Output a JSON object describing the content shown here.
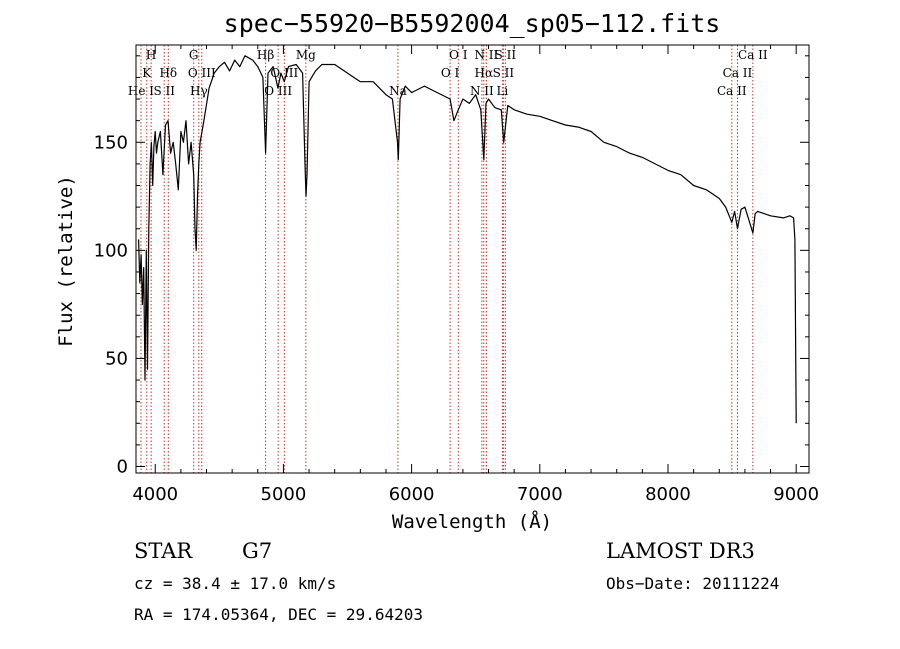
{
  "chart_data": {
    "type": "line",
    "title": "spec−55920−B5592004_sp05−112.fits",
    "xlabel": "Wavelength (Å)",
    "ylabel": "Flux (relative)",
    "xlim": [
      3850,
      9100
    ],
    "ylim": [
      -3,
      195
    ],
    "xticks": [
      4000,
      5000,
      6000,
      7000,
      8000,
      9000
    ],
    "yticks": [
      0,
      50,
      100,
      150
    ],
    "line_color": "#000000",
    "marker_color": "#c0392b",
    "series": [
      {
        "name": "flux",
        "x": [
          3870,
          3880,
          3890,
          3900,
          3910,
          3920,
          3930,
          3940,
          3950,
          3960,
          3970,
          3980,
          3990,
          4000,
          4010,
          4020,
          4040,
          4060,
          4080,
          4100,
          4120,
          4140,
          4160,
          4180,
          4200,
          4220,
          4240,
          4260,
          4280,
          4300,
          4310,
          4320,
          4330,
          4340,
          4350,
          4380,
          4420,
          4460,
          4500,
          4540,
          4580,
          4620,
          4660,
          4700,
          4760,
          4800,
          4840,
          4861,
          4880,
          4920,
          4957,
          4980,
          5007,
          5040,
          5100,
          5150,
          5168,
          5176,
          5184,
          5200,
          5250,
          5300,
          5400,
          5500,
          5600,
          5700,
          5800,
          5850,
          5890,
          5896,
          5910,
          5950,
          6000,
          6100,
          6200,
          6300,
          6330,
          6364,
          6400,
          6450,
          6500,
          6540,
          6563,
          6580,
          6600,
          6650,
          6700,
          6718,
          6750,
          6800,
          6900,
          7000,
          7100,
          7200,
          7300,
          7400,
          7500,
          7600,
          7700,
          7800,
          7900,
          8000,
          8100,
          8200,
          8300,
          8400,
          8450,
          8498,
          8520,
          8542,
          8570,
          8600,
          8662,
          8680,
          8700,
          8800,
          8900,
          8950,
          8980,
          8990,
          9000
        ],
        "y": [
          105,
          85,
          98,
          75,
          92,
          40,
          100,
          45,
          110,
          140,
          150,
          130,
          148,
          155,
          145,
          150,
          155,
          135,
          158,
          160,
          145,
          150,
          140,
          128,
          155,
          150,
          160,
          140,
          150,
          135,
          110,
          100,
          125,
          140,
          150,
          160,
          175,
          182,
          185,
          187,
          183,
          188,
          185,
          190,
          188,
          185,
          180,
          145,
          182,
          185,
          175,
          182,
          178,
          185,
          186,
          182,
          140,
          125,
          135,
          178,
          183,
          186,
          186,
          182,
          178,
          178,
          172,
          170,
          150,
          142,
          170,
          176,
          173,
          176,
          173,
          170,
          160,
          165,
          170,
          168,
          172,
          165,
          142,
          168,
          170,
          166,
          165,
          150,
          167,
          165,
          163,
          162,
          160,
          158,
          157,
          155,
          150,
          148,
          145,
          143,
          140,
          137,
          135,
          130,
          128,
          124,
          120,
          113,
          118,
          110,
          119,
          120,
          108,
          117,
          118,
          116,
          115,
          116,
          115,
          105,
          20
        ]
      }
    ],
    "spectral_lines": [
      {
        "name": "He I",
        "wavelength": 3889,
        "row": 3
      },
      {
        "name": "K",
        "wavelength": 3934,
        "row": 2
      },
      {
        "name": "H",
        "wavelength": 3968,
        "row": 1
      },
      {
        "name": "S II",
        "wavelength": 4070,
        "row": 3
      },
      {
        "name": "Hδ",
        "wavelength": 4102,
        "row": 2
      },
      {
        "name": "G",
        "wavelength": 4300,
        "row": 1
      },
      {
        "name": "Hγ",
        "wavelength": 4340,
        "row": 3
      },
      {
        "name": "O III",
        "wavelength": 4363,
        "row": 2
      },
      {
        "name": "Hβ",
        "wavelength": 4861,
        "row": 1
      },
      {
        "name": "O III",
        "wavelength": 4959,
        "row": 3
      },
      {
        "name": "O III",
        "wavelength": 5007,
        "row": 2
      },
      {
        "name": "Mg",
        "wavelength": 5175,
        "row": 1
      },
      {
        "name": "Na",
        "wavelength": 5893,
        "row": 3
      },
      {
        "name": "O I",
        "wavelength": 6300,
        "row": 2
      },
      {
        "name": "O I",
        "wavelength": 6364,
        "row": 1
      },
      {
        "name": "N II",
        "wavelength": 6548,
        "row": 3
      },
      {
        "name": "Hα",
        "wavelength": 6563,
        "row": 2
      },
      {
        "name": "N II",
        "wavelength": 6583,
        "row": 1
      },
      {
        "name": "Li",
        "wavelength": 6708,
        "row": 3
      },
      {
        "name": "S II",
        "wavelength": 6716,
        "row": 2
      },
      {
        "name": "S II",
        "wavelength": 6731,
        "row": 1
      },
      {
        "name": "Ca II",
        "wavelength": 8498,
        "row": 3
      },
      {
        "name": "Ca II",
        "wavelength": 8542,
        "row": 2
      },
      {
        "name": "Ca II",
        "wavelength": 8662,
        "row": 1
      }
    ]
  },
  "info": {
    "object_type": "STAR",
    "subclass": "G7",
    "survey": "LAMOST DR3",
    "cz": "cz = 38.4 ± 17.0 km/s",
    "obs_date": "Obs−Date: 20111224",
    "coords": "RA = 174.05364, DEC =  29.64203"
  }
}
